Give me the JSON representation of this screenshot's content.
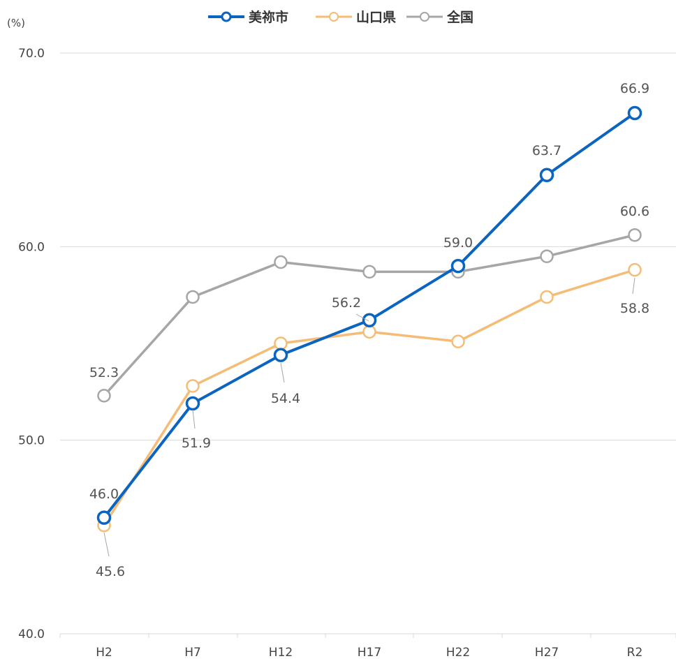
{
  "chart_data": {
    "type": "line",
    "title": "",
    "xlabel": "",
    "ylabel": "",
    "unit_label": "(%)",
    "categories": [
      "H2",
      "H7",
      "H12",
      "H17",
      "H22",
      "H27",
      "R2"
    ],
    "ylim": [
      40,
      70
    ],
    "yticks": [
      "40.0",
      "50.0",
      "60.0",
      "70.0"
    ],
    "grid": true,
    "legend_position": "top-center",
    "series": [
      {
        "name": "美祢市",
        "color": "#0a64c0",
        "values": [
          46.0,
          51.9,
          54.4,
          56.2,
          59.0,
          63.7,
          66.9
        ],
        "labels": [
          "46.0",
          "51.9",
          "54.4",
          "56.2",
          "59.0",
          "63.7",
          "66.9"
        ]
      },
      {
        "name": "山口県",
        "color": "#f5bc75",
        "values": [
          45.6,
          52.8,
          55.0,
          55.6,
          55.1,
          57.4,
          58.8
        ],
        "labels": [
          "45.6",
          "",
          "",
          "",
          "",
          "",
          "58.8"
        ]
      },
      {
        "name": "全国",
        "color": "#a6a6a6",
        "values": [
          52.3,
          57.4,
          59.2,
          58.7,
          58.7,
          59.5,
          60.6
        ],
        "labels": [
          "52.3",
          "",
          "",
          "",
          "",
          "",
          "60.6"
        ]
      }
    ]
  }
}
